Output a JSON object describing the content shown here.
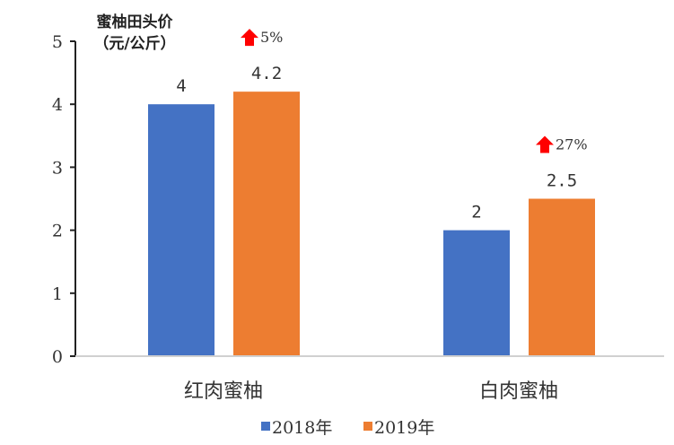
{
  "chart_data": {
    "type": "bar",
    "title": "蜜柚田头价\n（元/公斤）",
    "title_lines": [
      "蜜柚田头价",
      "（元/公斤）"
    ],
    "categories": [
      "红肉蜜柚",
      "白肉蜜柚"
    ],
    "series": [
      {
        "name": "2018年",
        "values": [
          4,
          2
        ],
        "labels": [
          "4",
          "2"
        ],
        "color": "#4472C4"
      },
      {
        "name": "2019年",
        "values": [
          4.2,
          2.5
        ],
        "labels": [
          "4.2",
          "2.5"
        ],
        "color": "#ED7D31"
      }
    ],
    "annotations": [
      {
        "text": "5%",
        "icon": "up-arrow-icon",
        "color": "#FF0000",
        "category": "红肉蜜柚"
      },
      {
        "text": "27%",
        "icon": "up-arrow-icon",
        "color": "#FF0000",
        "category": "白肉蜜柚"
      }
    ],
    "ylim": [
      0,
      5
    ],
    "yticks": [
      "0",
      "1",
      "2",
      "3",
      "4",
      "5"
    ],
    "grid": false,
    "legend": "bottom"
  }
}
